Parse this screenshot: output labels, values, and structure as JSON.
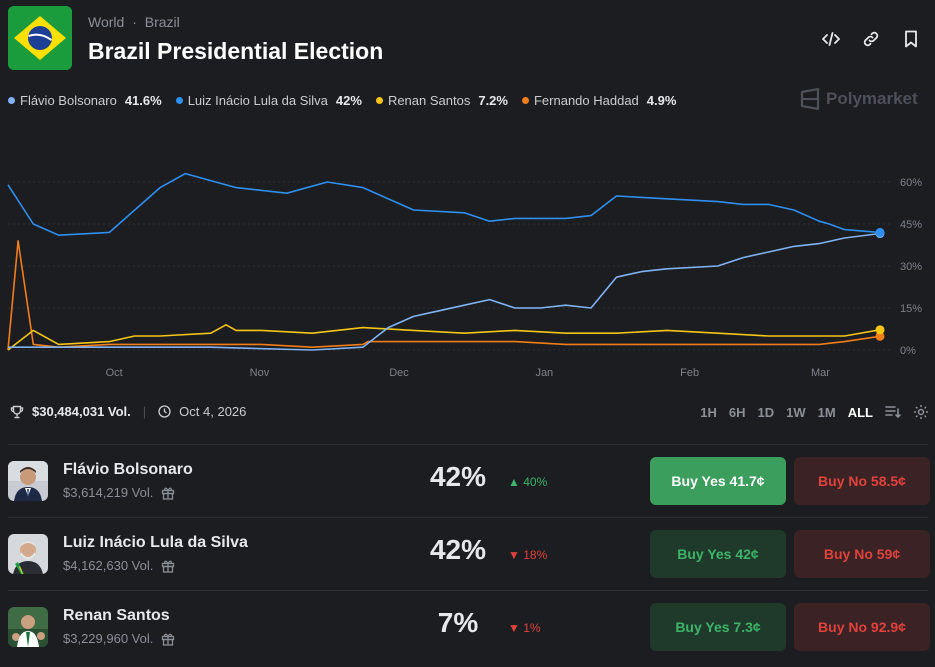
{
  "header": {
    "breadcrumb_world": "World",
    "breadcrumb_sep": "·",
    "breadcrumb_country": "Brazil",
    "title": "Brazil Presidential Election"
  },
  "legend": [
    {
      "name": "Flávio Bolsonaro",
      "value": "41.6%",
      "color": "#7fb3f5"
    },
    {
      "name": "Luiz Inácio Lula da Silva",
      "value": "42%",
      "color": "#2f8ff0"
    },
    {
      "name": "Renan Santos",
      "value": "7.2%",
      "color": "#f5c518"
    },
    {
      "name": "Fernando Haddad",
      "value": "4.9%",
      "color": "#f07d1a"
    }
  ],
  "brand": "Polymarket",
  "chart_data": {
    "type": "line",
    "x_ticks": [
      "Oct",
      "Nov",
      "Dec",
      "Jan",
      "Feb",
      "Mar"
    ],
    "y_ticks": [
      "60%",
      "45%",
      "30%",
      "15%",
      "0%"
    ],
    "ylim": [
      0,
      65
    ],
    "series": [
      {
        "name": "Luiz Inácio Lula da Silva",
        "color": "#2f8ff0",
        "x": [
          0,
          5,
          10,
          20,
          30,
          35,
          45,
          55,
          63,
          70,
          80,
          90,
          95,
          100,
          110,
          115,
          120,
          130,
          140,
          145,
          150,
          155,
          160,
          162,
          165,
          172
        ],
        "y": [
          59,
          45,
          41,
          42,
          58,
          63,
          58,
          56,
          60,
          58,
          50,
          49,
          46,
          47,
          47,
          48,
          55,
          54,
          53,
          52,
          52,
          50,
          46,
          45,
          43,
          42
        ]
      },
      {
        "name": "Flávio Bolsonaro",
        "color": "#7fb3f5",
        "x": [
          0,
          20,
          40,
          60,
          70,
          75,
          80,
          85,
          90,
          95,
          100,
          105,
          110,
          115,
          120,
          125,
          130,
          140,
          145,
          150,
          155,
          160,
          165,
          172
        ],
        "y": [
          1,
          1,
          1,
          0,
          1,
          8,
          12,
          14,
          16,
          18,
          15,
          15,
          16,
          15,
          26,
          28,
          29,
          30,
          33,
          35,
          37,
          38,
          40,
          41.6
        ]
      },
      {
        "name": "Renan Santos",
        "color": "#f5c518",
        "x": [
          0,
          5,
          10,
          20,
          25,
          30,
          40,
          43,
          45,
          50,
          60,
          70,
          80,
          90,
          100,
          110,
          120,
          130,
          140,
          150,
          160,
          165,
          172
        ],
        "y": [
          0,
          7,
          2,
          3,
          5,
          5,
          6,
          9,
          7,
          7,
          6,
          8,
          7,
          6,
          7,
          6,
          6,
          7,
          6,
          5,
          5,
          5,
          7.2
        ]
      },
      {
        "name": "Fernando Haddad",
        "color": "#f07d1a",
        "x": [
          0,
          2,
          5,
          10,
          20,
          30,
          40,
          50,
          60,
          70,
          71,
          80,
          90,
          100,
          110,
          120,
          130,
          140,
          150,
          160,
          165,
          172
        ],
        "y": [
          0,
          39,
          2,
          1,
          2,
          2,
          2,
          2,
          1,
          2,
          3,
          3,
          3,
          3,
          2,
          2,
          2,
          2,
          2,
          2,
          3,
          4.9
        ]
      }
    ]
  },
  "stats": {
    "volume": "$30,484,031 Vol.",
    "date": "Oct 4, 2026"
  },
  "ranges": [
    "1H",
    "6H",
    "1D",
    "1W",
    "1M",
    "ALL"
  ],
  "outcomes": [
    {
      "name": "Flávio Bolsonaro",
      "volume": "$3,614,219 Vol.",
      "pct": "42%",
      "change": "40%",
      "dir": "up",
      "yes": "Buy Yes 41.7¢",
      "no": "Buy No 58.5¢"
    },
    {
      "name": "Luiz Inácio Lula da Silva",
      "volume": "$4,162,630 Vol.",
      "pct": "42%",
      "change": "18%",
      "dir": "down",
      "yes": "Buy Yes 42¢",
      "no": "Buy No 59¢"
    },
    {
      "name": "Renan Santos",
      "volume": "$3,229,960 Vol.",
      "pct": "7%",
      "change": "1%",
      "dir": "down",
      "yes": "Buy Yes 7.3¢",
      "no": "Buy No 92.9¢"
    }
  ]
}
